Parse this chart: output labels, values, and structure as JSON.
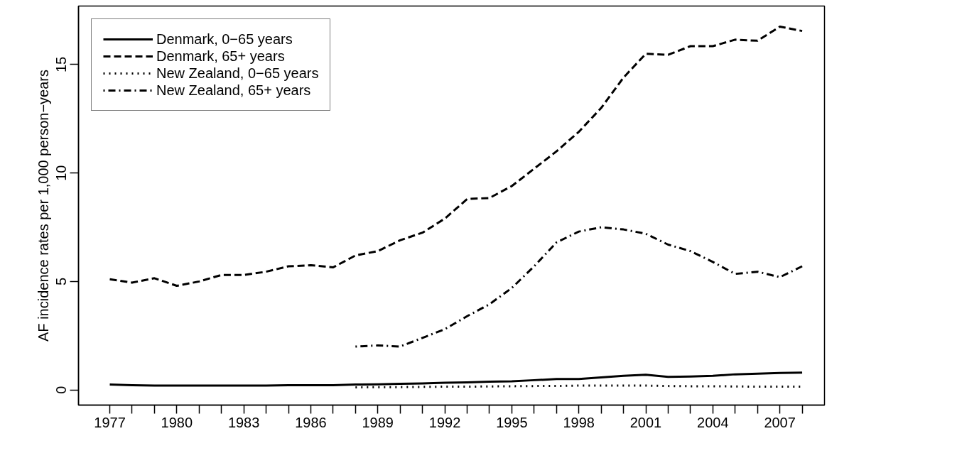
{
  "chart_data": {
    "type": "line",
    "ylabel": "AF incidence rates per 1,000 person−years",
    "xlim": [
      1975.6,
      2009.0
    ],
    "ylim": [
      -0.7,
      17.7
    ],
    "xticks": [
      1977,
      {
        "value": 1978,
        "label": null
      },
      {
        "value": 1979,
        "label": null
      },
      1980,
      {
        "value": 1981,
        "label": null
      },
      {
        "value": 1982,
        "label": null
      },
      1983,
      {
        "value": 1984,
        "label": null
      },
      {
        "value": 1985,
        "label": null
      },
      1986,
      {
        "value": 1987,
        "label": null
      },
      {
        "value": 1988,
        "label": null
      },
      1989,
      {
        "value": 1990,
        "label": null
      },
      {
        "value": 1991,
        "label": null
      },
      1992,
      {
        "value": 1993,
        "label": null
      },
      {
        "value": 1994,
        "label": null
      },
      1995,
      {
        "value": 1996,
        "label": null
      },
      {
        "value": 1997,
        "label": null
      },
      1998,
      {
        "value": 1999,
        "label": null
      },
      {
        "value": 2000,
        "label": null
      },
      2001,
      {
        "value": 2002,
        "label": null
      },
      {
        "value": 2003,
        "label": null
      },
      2004,
      {
        "value": 2005,
        "label": null
      },
      {
        "value": 2006,
        "label": null
      },
      2007,
      {
        "value": 2008,
        "label": null
      }
    ],
    "yticks": [
      0,
      5,
      10,
      15
    ],
    "grid": false,
    "legend": "top left",
    "marker": "none",
    "series": [
      {
        "name": "Denmark, 0−65 years",
        "color": "#000000",
        "line_style": "solid",
        "x": [
          1977,
          1978,
          1979,
          1980,
          1981,
          1982,
          1983,
          1984,
          1985,
          1986,
          1987,
          1988,
          1989,
          1990,
          1991,
          1992,
          1993,
          1994,
          1995,
          1996,
          1997,
          1998,
          1999,
          2000,
          2001,
          2002,
          2003,
          2004,
          2005,
          2006,
          2007,
          2008
        ],
        "values": [
          0.25,
          0.22,
          0.2,
          0.2,
          0.2,
          0.2,
          0.2,
          0.2,
          0.22,
          0.22,
          0.22,
          0.25,
          0.26,
          0.28,
          0.3,
          0.33,
          0.35,
          0.38,
          0.4,
          0.45,
          0.5,
          0.5,
          0.58,
          0.65,
          0.7,
          0.6,
          0.62,
          0.65,
          0.72,
          0.75,
          0.78,
          0.8
        ]
      },
      {
        "name": "Denmark, 65+ years",
        "color": "#000000",
        "line_style": "dashed",
        "x": [
          1977,
          1978,
          1979,
          1980,
          1981,
          1982,
          1983,
          1984,
          1985,
          1986,
          1987,
          1988,
          1989,
          1990,
          1991,
          1992,
          1993,
          1994,
          1995,
          1996,
          1997,
          1998,
          1999,
          2000,
          2001,
          2002,
          2003,
          2004,
          2005,
          2006,
          2007,
          2008
        ],
        "values": [
          5.1,
          4.95,
          5.15,
          4.8,
          5.0,
          5.3,
          5.3,
          5.45,
          5.7,
          5.75,
          5.65,
          6.2,
          6.4,
          6.9,
          7.25,
          7.9,
          8.8,
          8.85,
          9.4,
          10.2,
          11.0,
          11.9,
          13.0,
          14.4,
          15.5,
          15.45,
          15.85,
          15.85,
          16.15,
          16.1,
          16.75,
          16.55
        ]
      },
      {
        "name": "New Zealand, 0−65 years",
        "color": "#000000",
        "line_style": "dotted",
        "x": [
          1988,
          1989,
          1990,
          1991,
          1992,
          1993,
          1994,
          1995,
          1996,
          1997,
          1998,
          1999,
          2000,
          2001,
          2002,
          2003,
          2004,
          2005,
          2006,
          2007,
          2008
        ],
        "values": [
          0.12,
          0.13,
          0.13,
          0.14,
          0.15,
          0.15,
          0.16,
          0.17,
          0.18,
          0.18,
          0.2,
          0.2,
          0.2,
          0.2,
          0.18,
          0.17,
          0.17,
          0.16,
          0.15,
          0.15,
          0.15
        ]
      },
      {
        "name": "New Zealand, 65+ years",
        "color": "#000000",
        "line_style": "dashdot",
        "x": [
          1988,
          1989,
          1990,
          1991,
          1992,
          1993,
          1994,
          1995,
          1996,
          1997,
          1998,
          1999,
          2000,
          2001,
          2002,
          2003,
          2004,
          2005,
          2006,
          2007,
          2008
        ],
        "values": [
          2.0,
          2.05,
          2.0,
          2.4,
          2.8,
          3.4,
          3.95,
          4.7,
          5.7,
          6.8,
          7.3,
          7.5,
          7.4,
          7.2,
          6.7,
          6.4,
          5.9,
          5.35,
          5.45,
          5.2,
          5.7
        ]
      }
    ]
  }
}
